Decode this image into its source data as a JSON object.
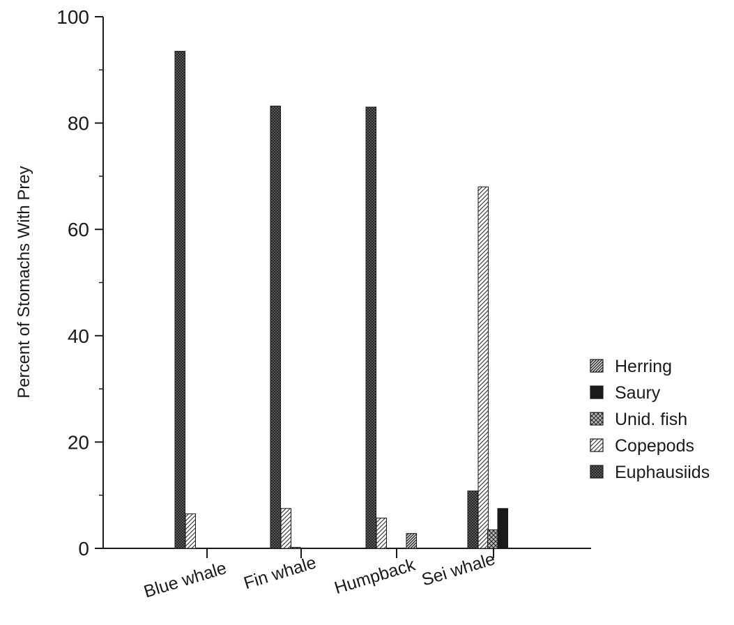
{
  "chart_data": {
    "type": "bar",
    "title": "",
    "xlabel": "",
    "ylabel": "Percent of Stomachs With Prey",
    "ylim": [
      0,
      100
    ],
    "yticks": [
      0,
      20,
      40,
      60,
      80,
      100
    ],
    "categories": [
      "Blue whale",
      "Fin whale",
      "Humpback",
      "Sei whale"
    ],
    "series": [
      {
        "name": "Euphausiids",
        "pattern": "dense-crosshatch",
        "values": [
          93.5,
          83.2,
          83.0,
          10.8
        ]
      },
      {
        "name": "Copepods",
        "pattern": "light-diagonal",
        "values": [
          6.5,
          7.5,
          5.7,
          68.0
        ]
      },
      {
        "name": "Unid. fish",
        "pattern": "crosshatch",
        "values": [
          0,
          0.2,
          0,
          3.5
        ]
      },
      {
        "name": "Saury",
        "pattern": "solid",
        "values": [
          0,
          0,
          0,
          7.5
        ]
      },
      {
        "name": "Herring",
        "pattern": "diagonal",
        "values": [
          0,
          0,
          2.8,
          0
        ]
      }
    ],
    "legend": {
      "position": "right",
      "order": [
        "Herring",
        "Saury",
        "Unid. fish",
        "Copepods",
        "Euphausiids"
      ]
    },
    "grid": false,
    "colors": {
      "ink": "#1a1a1a",
      "background": "#ffffff"
    }
  }
}
